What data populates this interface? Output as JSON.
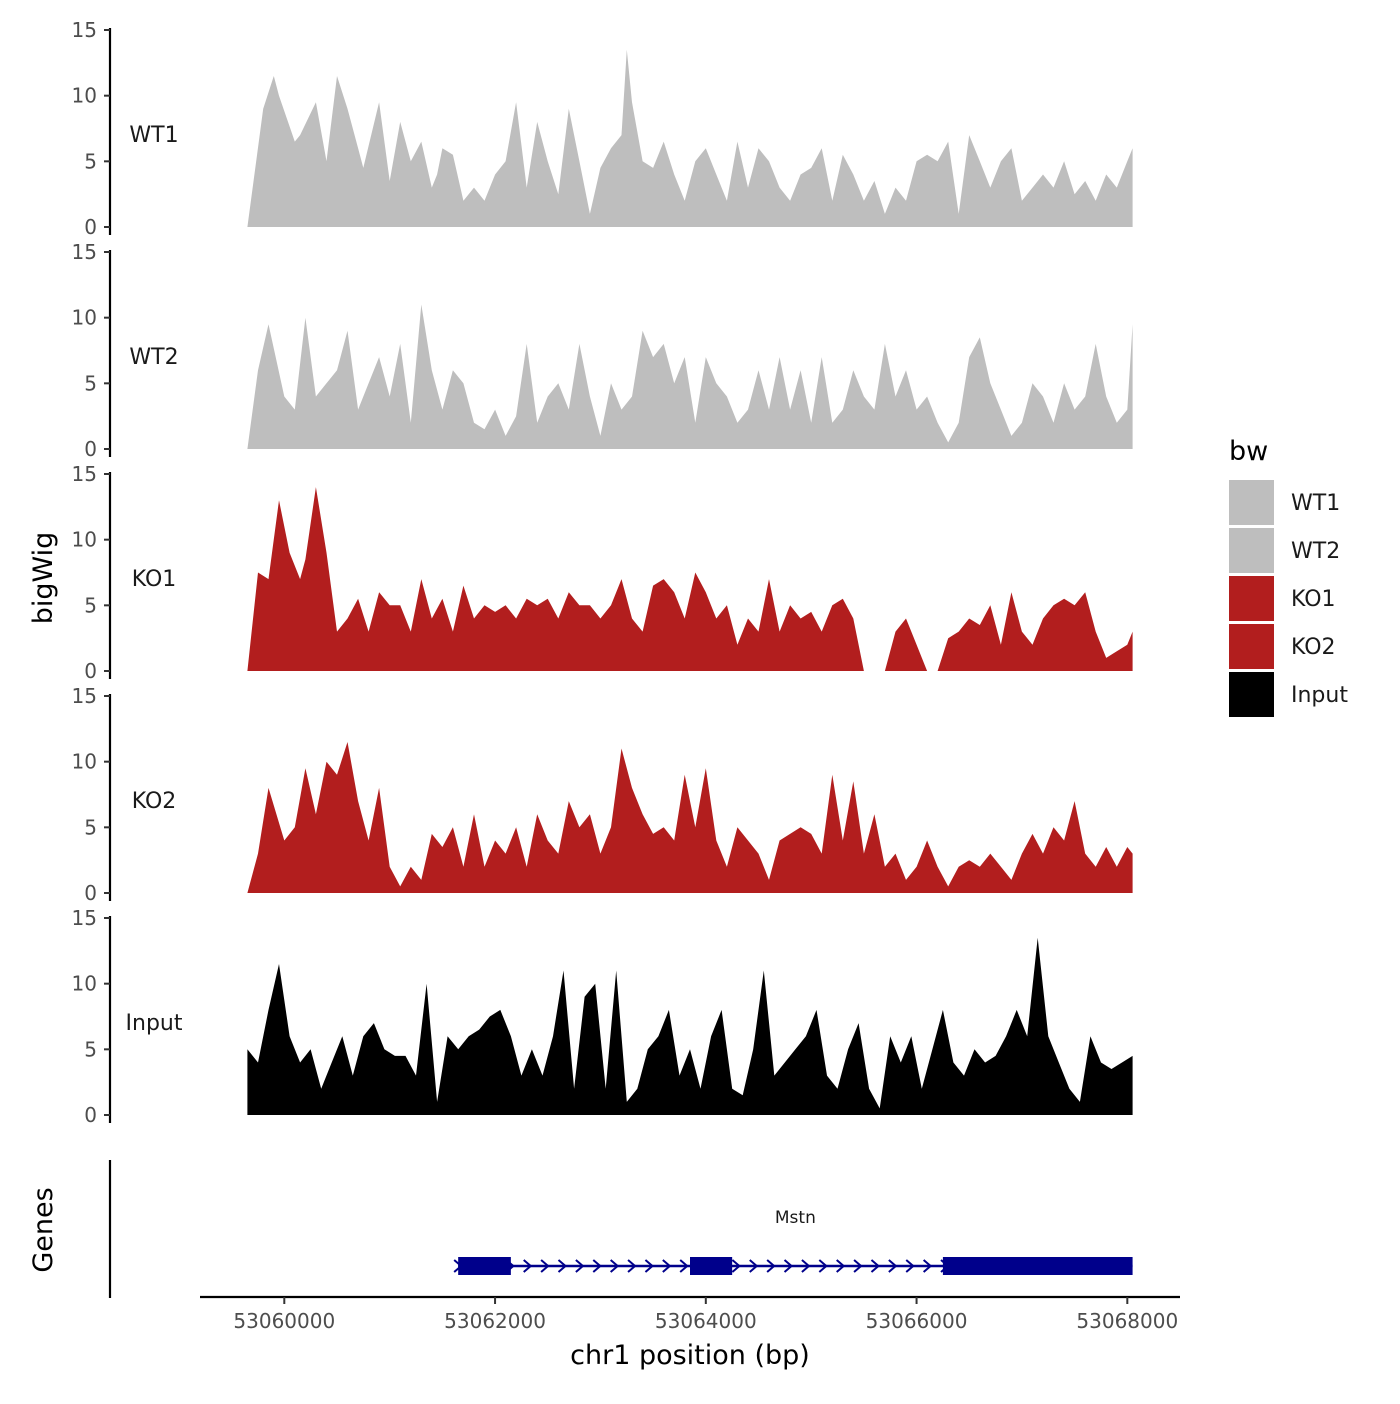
{
  "chart_data": {
    "type": "area",
    "title": "",
    "xlabel": "chr1 position (bp)",
    "ylabel": "bigWig",
    "genes_label": "Genes",
    "xlim": [
      53059200,
      53068500
    ],
    "ylim": [
      0,
      15
    ],
    "x_ticks": [
      {
        "value": 53060000,
        "label": "53060000"
      },
      {
        "value": 53062000,
        "label": "53062000"
      },
      {
        "value": 53064000,
        "label": "53064000"
      },
      {
        "value": 53066000,
        "label": "53066000"
      },
      {
        "value": 53068000,
        "label": "53068000"
      }
    ],
    "y_ticks": [
      {
        "value": 0,
        "label": "0"
      },
      {
        "value": 5,
        "label": "5"
      },
      {
        "value": 10,
        "label": "10"
      },
      {
        "value": 15,
        "label": "15"
      }
    ],
    "legend": {
      "title": "bw",
      "position": "right",
      "entries": [
        {
          "name": "WT1",
          "color": "#bebebe"
        },
        {
          "name": "WT2",
          "color": "#bebebe"
        },
        {
          "name": "KO1",
          "color": "#b21e1e"
        },
        {
          "name": "KO2",
          "color": "#b21e1e"
        },
        {
          "name": "Input",
          "color": "#000000"
        }
      ]
    },
    "series": [
      {
        "name": "WT1",
        "color": "#bebebe",
        "x": [
          53059650,
          53059800,
          53059900,
          53059950,
          53060100,
          53060150,
          53060300,
          53060400,
          53060500,
          53060600,
          53060700,
          53060750,
          53060900,
          53061000,
          53061100,
          53061200,
          53061300,
          53061400,
          53061450,
          53061500,
          53061600,
          53061700,
          53061800,
          53061900,
          53062000,
          53062100,
          53062200,
          53062300,
          53062400,
          53062500,
          53062600,
          53062700,
          53062800,
          53062900,
          53063000,
          53063100,
          53063200,
          53063250,
          53063300,
          53063400,
          53063500,
          53063600,
          53063700,
          53063800,
          53063900,
          53064000,
          53064100,
          53064200,
          53064300,
          53064400,
          53064500,
          53064600,
          53064700,
          53064800,
          53064900,
          53065000,
          53065100,
          53065200,
          53065300,
          53065400,
          53065500,
          53065600,
          53065700,
          53065800,
          53065900,
          53066000,
          53066100,
          53066200,
          53066300,
          53066400,
          53066500,
          53066600,
          53066700,
          53066800,
          53066900,
          53067000,
          53067100,
          53067200,
          53067300,
          53067400,
          53067500,
          53067600,
          53067700,
          53067800,
          53067900,
          53068000,
          53068050
        ],
        "values": [
          0,
          9,
          11.5,
          10,
          6.5,
          7,
          9.5,
          5,
          11.5,
          9,
          6,
          4.5,
          9.5,
          3.5,
          8,
          5,
          6.5,
          3,
          4,
          6,
          5.5,
          2,
          3,
          2,
          4,
          5,
          9.5,
          3,
          8,
          5,
          2.5,
          9,
          5,
          1,
          4.5,
          6,
          7,
          13.5,
          9.5,
          5,
          4.5,
          6.5,
          4,
          2,
          5,
          6,
          4,
          2,
          6.5,
          3,
          6,
          5,
          3,
          2,
          4,
          4.5,
          6,
          2,
          5.5,
          4,
          2,
          3.5,
          1,
          3,
          2,
          5,
          5.5,
          5,
          6.5,
          1,
          7,
          5,
          3,
          5,
          6,
          2,
          3,
          4,
          3,
          5,
          2.5,
          3.5,
          2,
          4,
          3,
          5,
          6
        ]
      },
      {
        "name": "WT2",
        "color": "#bebebe",
        "x": [
          53059650,
          53059750,
          53059850,
          53060000,
          53060100,
          53060200,
          53060300,
          53060400,
          53060500,
          53060600,
          53060700,
          53060800,
          53060900,
          53061000,
          53061100,
          53061200,
          53061300,
          53061400,
          53061500,
          53061600,
          53061700,
          53061800,
          53061900,
          53062000,
          53062100,
          53062200,
          53062300,
          53062400,
          53062500,
          53062600,
          53062700,
          53062800,
          53062900,
          53063000,
          53063100,
          53063200,
          53063300,
          53063400,
          53063500,
          53063600,
          53063700,
          53063800,
          53063900,
          53064000,
          53064100,
          53064200,
          53064300,
          53064400,
          53064500,
          53064600,
          53064700,
          53064800,
          53064900,
          53065000,
          53065100,
          53065200,
          53065300,
          53065400,
          53065500,
          53065600,
          53065700,
          53065800,
          53065900,
          53066000,
          53066100,
          53066200,
          53066300,
          53066400,
          53066500,
          53066600,
          53066700,
          53066800,
          53066900,
          53067000,
          53067100,
          53067200,
          53067300,
          53067400,
          53067500,
          53067600,
          53067700,
          53067800,
          53067900,
          53068000,
          53068050
        ],
        "values": [
          0,
          6,
          9.5,
          4,
          3,
          10,
          4,
          5,
          6,
          9,
          3,
          5,
          7,
          4,
          8,
          2,
          11,
          6,
          3,
          6,
          5,
          2,
          1.5,
          3,
          1,
          2.5,
          8,
          2,
          4,
          5,
          3,
          8,
          4,
          1,
          5,
          3,
          4,
          9,
          7,
          8,
          5,
          7,
          2,
          7,
          5,
          4,
          2,
          3,
          6,
          3,
          7,
          3,
          6,
          2,
          7,
          2,
          3,
          6,
          4,
          3,
          8,
          4,
          6,
          3,
          4,
          2,
          0.5,
          2,
          7,
          8.5,
          5,
          3,
          1,
          2,
          5,
          4,
          2,
          5,
          3,
          4,
          8,
          4,
          2,
          3,
          9.5
        ]
      },
      {
        "name": "KO1",
        "color": "#b21e1e",
        "x": [
          53059650,
          53059750,
          53059850,
          53059950,
          53060050,
          53060150,
          53060200,
          53060300,
          53060400,
          53060500,
          53060600,
          53060700,
          53060800,
          53060900,
          53061000,
          53061100,
          53061200,
          53061300,
          53061400,
          53061500,
          53061600,
          53061700,
          53061800,
          53061900,
          53062000,
          53062100,
          53062200,
          53062300,
          53062400,
          53062500,
          53062600,
          53062700,
          53062800,
          53062900,
          53063000,
          53063100,
          53063200,
          53063300,
          53063400,
          53063500,
          53063600,
          53063700,
          53063800,
          53063900,
          53064000,
          53064100,
          53064200,
          53064300,
          53064400,
          53064500,
          53064600,
          53064700,
          53064800,
          53064900,
          53065000,
          53065100,
          53065200,
          53065300,
          53065400,
          53065500,
          53065600,
          53065700,
          53065800,
          53065900,
          53066000,
          53066100,
          53066200,
          53066300,
          53066400,
          53066500,
          53066600,
          53066700,
          53066800,
          53066900,
          53067000,
          53067100,
          53067200,
          53067300,
          53067400,
          53067500,
          53067600,
          53067700,
          53067800,
          53067900,
          53068000,
          53068050
        ],
        "values": [
          0,
          7.5,
          7,
          13,
          9,
          7,
          8.5,
          14,
          9,
          3,
          4,
          5.5,
          3,
          6,
          5,
          5,
          3,
          7,
          4,
          5.5,
          3,
          6.5,
          4,
          5,
          4.5,
          5,
          4,
          5.5,
          5,
          5.5,
          4,
          6,
          5,
          5,
          4,
          5,
          7,
          4,
          3,
          6.5,
          7,
          6,
          4,
          7.5,
          6,
          4,
          5,
          2,
          4,
          3,
          7,
          3,
          5,
          4,
          4.5,
          3,
          5,
          5.5,
          4,
          0,
          0,
          0,
          3,
          4,
          2,
          0,
          0,
          2.5,
          3,
          4,
          3.5,
          5,
          2,
          6,
          3,
          2,
          4,
          5,
          5.5,
          5,
          6,
          3,
          1,
          1.5,
          2,
          3
        ]
      },
      {
        "name": "KO2",
        "color": "#b21e1e",
        "x": [
          53059650,
          53059750,
          53059850,
          53060000,
          53060100,
          53060200,
          53060300,
          53060400,
          53060500,
          53060600,
          53060700,
          53060800,
          53060900,
          53061000,
          53061100,
          53061200,
          53061300,
          53061400,
          53061500,
          53061600,
          53061700,
          53061800,
          53061900,
          53062000,
          53062100,
          53062200,
          53062300,
          53062400,
          53062500,
          53062600,
          53062700,
          53062800,
          53062900,
          53063000,
          53063100,
          53063200,
          53063300,
          53063400,
          53063500,
          53063600,
          53063700,
          53063800,
          53063900,
          53064000,
          53064100,
          53064200,
          53064300,
          53064400,
          53064500,
          53064600,
          53064700,
          53064800,
          53064900,
          53065000,
          53065100,
          53065200,
          53065300,
          53065400,
          53065500,
          53065600,
          53065700,
          53065800,
          53065900,
          53066000,
          53066100,
          53066200,
          53066300,
          53066400,
          53066500,
          53066600,
          53066700,
          53066800,
          53066900,
          53067000,
          53067100,
          53067200,
          53067300,
          53067400,
          53067500,
          53067600,
          53067700,
          53067800,
          53067900,
          53068000,
          53068050
        ],
        "values": [
          0,
          3,
          8,
          4,
          5,
          9.5,
          6,
          10,
          9,
          11.5,
          7,
          4,
          8,
          2,
          0.5,
          2,
          1,
          4.5,
          3.5,
          5,
          2,
          6,
          2,
          4,
          3,
          5,
          2,
          6,
          4,
          3,
          7,
          5,
          6,
          3,
          5,
          11,
          8,
          6,
          4.5,
          5,
          4,
          9,
          5,
          9.5,
          4,
          2,
          5,
          4,
          3,
          1,
          4,
          4.5,
          5,
          4.5,
          3,
          9,
          4,
          8.5,
          3,
          6,
          2,
          3,
          1,
          2,
          4,
          2,
          0.5,
          2,
          2.5,
          2,
          3,
          2,
          1,
          3,
          4.5,
          3,
          5,
          4,
          7,
          3,
          2,
          3.5,
          2,
          3.5,
          3
        ]
      },
      {
        "name": "Input",
        "color": "#000000",
        "x": [
          53059650,
          53059750,
          53059850,
          53059950,
          53060050,
          53060150,
          53060250,
          53060350,
          53060450,
          53060550,
          53060650,
          53060750,
          53060850,
          53060950,
          53061050,
          53061150,
          53061250,
          53061350,
          53061450,
          53061550,
          53061650,
          53061750,
          53061850,
          53061950,
          53062050,
          53062150,
          53062250,
          53062350,
          53062450,
          53062550,
          53062650,
          53062750,
          53062850,
          53062950,
          53063050,
          53063150,
          53063250,
          53063350,
          53063450,
          53063550,
          53063650,
          53063750,
          53063850,
          53063950,
          53064050,
          53064150,
          53064250,
          53064350,
          53064450,
          53064550,
          53064650,
          53064750,
          53064850,
          53064950,
          53065050,
          53065150,
          53065250,
          53065350,
          53065450,
          53065550,
          53065650,
          53065750,
          53065850,
          53065950,
          53066050,
          53066150,
          53066250,
          53066350,
          53066450,
          53066550,
          53066650,
          53066750,
          53066850,
          53066950,
          53067050,
          53067150,
          53067250,
          53067350,
          53067450,
          53067550,
          53067650,
          53067750,
          53067850,
          53067950,
          53068050
        ],
        "values": [
          5,
          4,
          8,
          11.5,
          6,
          4,
          5,
          2,
          4,
          6,
          3,
          6,
          7,
          5,
          4.5,
          4.5,
          3,
          10,
          1,
          6,
          5,
          6,
          6.5,
          7.5,
          8,
          6,
          3,
          5,
          3,
          6,
          11,
          2,
          9,
          10,
          2,
          11,
          1,
          2,
          5,
          6,
          8,
          3,
          5,
          2,
          6,
          8,
          2,
          1.5,
          5,
          11,
          3,
          4,
          5,
          6,
          8,
          3,
          2,
          5,
          7,
          2,
          0.5,
          6,
          4,
          6,
          2,
          5,
          8,
          4,
          3,
          5,
          4,
          4.5,
          6,
          8,
          6,
          13.5,
          6,
          4,
          2,
          1,
          6,
          4,
          3.5,
          4,
          4.5
        ]
      }
    ],
    "gene": {
      "name": "Mstn",
      "color": "#00008b",
      "strand": "+",
      "start": 53061650,
      "end": 53068050,
      "exons": [
        [
          53061650,
          53062150
        ],
        [
          53063850,
          53064250
        ],
        [
          53066250,
          53068050
        ]
      ]
    }
  }
}
